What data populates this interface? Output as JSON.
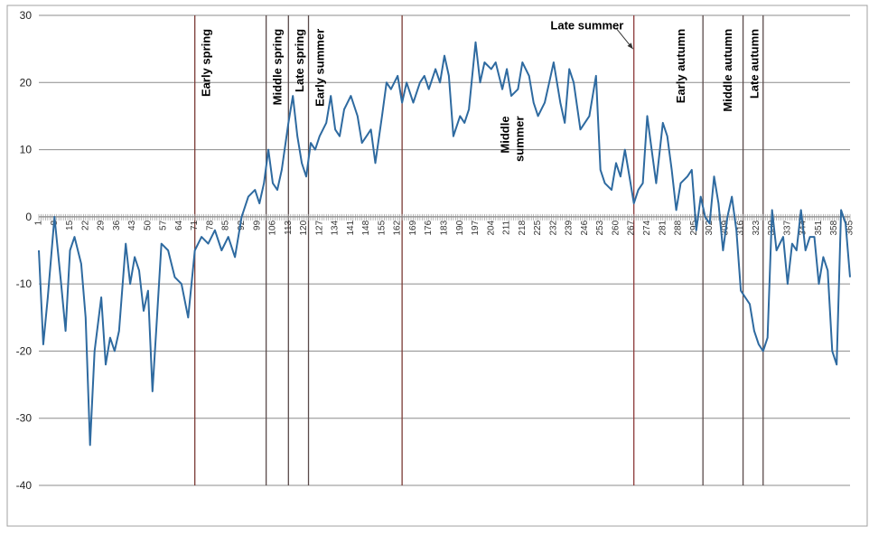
{
  "chart_data": {
    "type": "line",
    "title": "",
    "xlabel": "",
    "ylabel": "",
    "xlim": [
      1,
      365
    ],
    "ylim": [
      -40,
      30
    ],
    "y_ticks": [
      30,
      20,
      10,
      0,
      -10,
      -20,
      -30,
      -40
    ],
    "x_ticks": [
      1,
      8,
      15,
      22,
      29,
      36,
      43,
      50,
      57,
      64,
      71,
      78,
      85,
      92,
      99,
      106,
      113,
      120,
      127,
      134,
      141,
      148,
      155,
      162,
      169,
      176,
      183,
      190,
      197,
      204,
      211,
      218,
      225,
      232,
      239,
      246,
      253,
      260,
      267,
      274,
      281,
      288,
      295,
      302,
      309,
      316,
      323,
      330,
      337,
      344,
      351,
      358,
      365
    ],
    "grid": "horizontal",
    "legend": "none",
    "series_color": "#2e6aa0",
    "dividers": [
      {
        "day": 71,
        "color": "#7a3a35"
      },
      {
        "day": 103,
        "color": "#5a4a4a"
      },
      {
        "day": 113,
        "color": "#5a4a4a"
      },
      {
        "day": 122,
        "color": "#5a4a4a"
      },
      {
        "day": 164,
        "color": "#7a3a35"
      },
      {
        "day": 268,
        "color": "#8c3a3a"
      },
      {
        "day": 299,
        "color": "#5a4a4a"
      },
      {
        "day": 317,
        "color": "#5a4a4a"
      },
      {
        "day": 326,
        "color": "#5a4a4a"
      }
    ],
    "season_labels": [
      {
        "text": "Early spring",
        "day": 76,
        "y_value": 28
      },
      {
        "text": "Middle spring",
        "day": 108,
        "y_value": 28
      },
      {
        "text": "Late spring",
        "day": 118,
        "y_value": 28
      },
      {
        "text": "Early summer",
        "day": 127,
        "y_value": 28
      },
      {
        "text": "Early autumn",
        "day": 289,
        "y_value": 28
      },
      {
        "text": "Middle autumn",
        "day": 310,
        "y_value": 28
      },
      {
        "text": "Late autumn",
        "day": 322,
        "y_value": 28
      }
    ],
    "middle_summer_label": {
      "line1": "Middle",
      "line2": "summer",
      "day": 213,
      "y_value": 15
    },
    "late_summer_annotation": {
      "text": "Late summer",
      "day": 247,
      "y_value": 28.5,
      "arrow_to_day": 268,
      "arrow_to_y": 25
    },
    "x": [
      1,
      3,
      5,
      8,
      11,
      13,
      15,
      17,
      20,
      22,
      24,
      26,
      29,
      31,
      33,
      35,
      37,
      40,
      42,
      44,
      46,
      48,
      50,
      52,
      54,
      56,
      59,
      62,
      65,
      68,
      71,
      74,
      77,
      80,
      83,
      86,
      89,
      92,
      95,
      98,
      100,
      102,
      104,
      106,
      108,
      110,
      113,
      115,
      117,
      119,
      121,
      123,
      125,
      127,
      130,
      132,
      134,
      136,
      138,
      141,
      144,
      146,
      148,
      150,
      152,
      155,
      157,
      159,
      162,
      164,
      166,
      169,
      172,
      174,
      176,
      179,
      181,
      183,
      185,
      187,
      190,
      192,
      194,
      197,
      199,
      201,
      204,
      206,
      209,
      211,
      213,
      216,
      218,
      221,
      223,
      225,
      228,
      230,
      232,
      235,
      237,
      239,
      241,
      244,
      246,
      248,
      251,
      253,
      255,
      258,
      260,
      262,
      264,
      266,
      268,
      270,
      272,
      274,
      276,
      278,
      281,
      283,
      285,
      287,
      289,
      292,
      294,
      296,
      298,
      300,
      302,
      304,
      306,
      308,
      310,
      312,
      314,
      316,
      318,
      320,
      322,
      324,
      326,
      328,
      330,
      332,
      335,
      337,
      339,
      341,
      343,
      345,
      347,
      349,
      351,
      353,
      355,
      357,
      359,
      361,
      363,
      365
    ],
    "values": [
      -5,
      -19,
      -12,
      0,
      -10,
      -17,
      -5,
      -3,
      -7,
      -15,
      -34,
      -20,
      -12,
      -22,
      -18,
      -20,
      -17,
      -4,
      -10,
      -6,
      -8,
      -14,
      -11,
      -26,
      -15,
      -4,
      -5,
      -9,
      -10,
      -15,
      -5,
      -3,
      -4,
      -2,
      -5,
      -3,
      -6,
      0,
      3,
      4,
      2,
      5,
      10,
      5,
      4,
      7,
      14,
      18,
      12,
      8,
      6,
      11,
      10,
      12,
      14,
      18,
      13,
      12,
      16,
      18,
      15,
      11,
      12,
      13,
      8,
      15,
      20,
      19,
      21,
      17,
      20,
      17,
      20,
      21,
      19,
      22,
      20,
      24,
      21,
      12,
      15,
      14,
      16,
      26,
      20,
      23,
      22,
      23,
      19,
      22,
      18,
      19,
      23,
      21,
      17,
      15,
      17,
      20,
      23,
      17,
      14,
      22,
      20,
      13,
      14,
      15,
      21,
      7,
      5,
      4,
      8,
      6,
      10,
      6,
      2,
      4,
      5,
      15,
      10,
      5,
      14,
      12,
      7,
      1,
      5,
      6,
      7,
      -2,
      3,
      0,
      -1,
      6,
      2,
      -5,
      0,
      3,
      -2,
      -11,
      -12,
      -13,
      -17,
      -19,
      -20,
      -18,
      1,
      -5,
      -3,
      -10,
      -4,
      -5,
      1,
      -5,
      -3,
      -3,
      -10,
      -6,
      -8,
      -20,
      -22,
      1,
      -1,
      -9
    ]
  }
}
